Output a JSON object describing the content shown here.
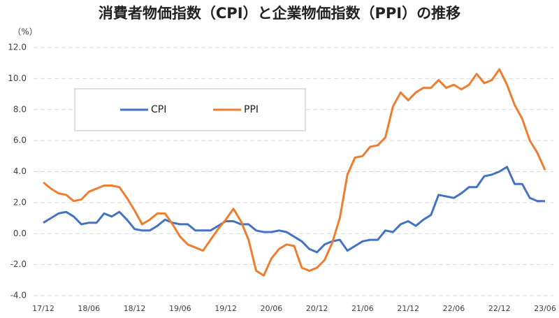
{
  "chart_data": {
    "type": "line",
    "title": "消費者物価指数（CPI）と企業物価指数（PPI）の推移",
    "y_label": "（%）",
    "categories": [
      "17/12",
      null,
      null,
      null,
      null,
      null,
      "18/06",
      null,
      null,
      null,
      null,
      null,
      "18/12",
      null,
      null,
      null,
      null,
      null,
      "19/06",
      null,
      null,
      null,
      null,
      null,
      "19/12",
      null,
      null,
      null,
      null,
      null,
      "20/06",
      null,
      null,
      null,
      null,
      null,
      "20/12",
      null,
      null,
      null,
      null,
      null,
      "21/06",
      null,
      null,
      null,
      null,
      null,
      "21/12",
      null,
      null,
      null,
      null,
      null,
      "22/06",
      null,
      null,
      null,
      null,
      null,
      "22/12",
      null,
      null,
      null,
      null,
      null,
      "23/06"
    ],
    "series": [
      {
        "name": "CPI",
        "color": "#4472c4",
        "values": [
          0.7,
          1.0,
          1.3,
          1.4,
          1.1,
          0.6,
          0.7,
          0.7,
          1.3,
          1.1,
          1.4,
          0.9,
          0.3,
          0.2,
          0.2,
          0.5,
          0.9,
          0.7,
          0.6,
          0.6,
          0.2,
          0.2,
          0.2,
          0.5,
          0.8,
          0.8,
          0.6,
          0.6,
          0.2,
          0.1,
          0.1,
          0.2,
          0.1,
          -0.2,
          -0.5,
          -1.0,
          -1.2,
          -0.7,
          -0.5,
          -0.4,
          -1.1,
          -0.8,
          -0.5,
          -0.4,
          -0.4,
          0.2,
          0.1,
          0.6,
          0.8,
          0.5,
          0.9,
          1.2,
          2.5,
          2.4,
          2.3,
          2.6,
          3.0,
          3.0,
          3.7,
          3.8,
          4.0,
          4.3,
          3.2,
          3.2,
          2.3,
          2.1,
          2.1
        ]
      },
      {
        "name": "PPI",
        "color": "#ed7d31",
        "values": [
          3.3,
          2.9,
          2.6,
          2.5,
          2.1,
          2.2,
          2.7,
          2.9,
          3.1,
          3.1,
          3.0,
          2.3,
          1.5,
          0.6,
          0.9,
          1.3,
          1.3,
          0.6,
          -0.2,
          -0.7,
          -0.9,
          -1.1,
          -0.4,
          0.3,
          0.9,
          1.6,
          0.8,
          -0.4,
          -2.4,
          -2.7,
          -1.6,
          -1.0,
          -0.7,
          -0.8,
          -2.2,
          -2.4,
          -2.2,
          -1.7,
          -0.6,
          1.0,
          3.8,
          4.9,
          5.0,
          5.6,
          5.7,
          6.2,
          8.2,
          9.1,
          8.6,
          9.1,
          9.4,
          9.4,
          9.9,
          9.4,
          9.6,
          9.3,
          9.6,
          10.3,
          9.7,
          9.9,
          10.6,
          9.6,
          8.3,
          7.4,
          6.0,
          5.2,
          4.1
        ]
      }
    ],
    "ylim": [
      -4,
      12
    ],
    "yticks": [
      {
        "value": -4,
        "label": "-4.0"
      },
      {
        "value": -2,
        "label": "-2.0"
      },
      {
        "value": 0,
        "label": "0.0"
      },
      {
        "value": 2,
        "label": "2.0"
      },
      {
        "value": 4,
        "label": "4.0"
      },
      {
        "value": 6,
        "label": "6.0"
      },
      {
        "value": 8,
        "label": "8.0"
      },
      {
        "value": 10,
        "label": "10.0"
      },
      {
        "value": 12,
        "label": "12.0"
      }
    ],
    "grid": true,
    "legend": "upper left"
  }
}
